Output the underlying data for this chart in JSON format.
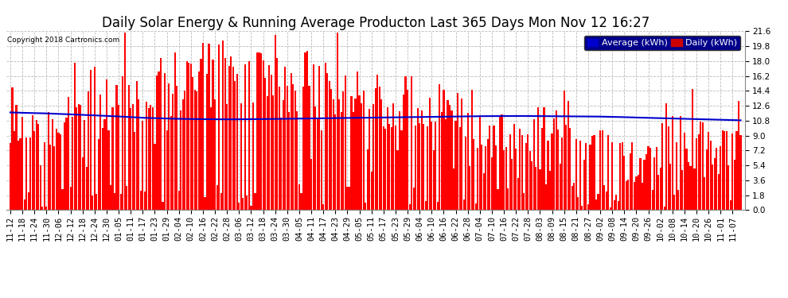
{
  "title": "Daily Solar Energy & Running Average Producton Last 365 Days Mon Nov 12 16:27",
  "copyright": "Copyright 2018 Cartronics.com",
  "bar_color": "#ff0000",
  "avg_line_color": "#0000cd",
  "background_color": "#ffffff",
  "plot_bg_color": "#ffffff",
  "grid_color": "#bbbbbb",
  "ylim": [
    0,
    21.6
  ],
  "ytick_interval": 1.8,
  "legend_avg_label": "Average (kWh)",
  "legend_daily_label": "Daily (kWh)",
  "legend_avg_bg": "#00008b",
  "legend_daily_bg": "#cc0000",
  "title_fontsize": 12,
  "tick_fontsize": 7.5,
  "n_days": 365,
  "seed": 99,
  "date_labels": [
    "11-12",
    "11-18",
    "11-24",
    "11-30",
    "12-06",
    "12-12",
    "12-18",
    "12-24",
    "12-30",
    "01-05",
    "01-11",
    "01-17",
    "01-23",
    "01-29",
    "02-04",
    "02-10",
    "02-16",
    "02-22",
    "02-28",
    "03-06",
    "03-12",
    "03-18",
    "03-24",
    "03-30",
    "04-05",
    "04-11",
    "04-17",
    "04-23",
    "04-29",
    "05-05",
    "05-11",
    "05-17",
    "05-23",
    "05-29",
    "06-04",
    "06-10",
    "06-16",
    "06-22",
    "06-28",
    "07-04",
    "07-10",
    "07-16",
    "07-22",
    "07-28",
    "08-03",
    "08-09",
    "08-15",
    "08-21",
    "08-27",
    "09-02",
    "09-08",
    "09-14",
    "09-20",
    "09-26",
    "10-02",
    "10-08",
    "10-14",
    "10-20",
    "10-26",
    "11-01",
    "11-07"
  ],
  "avg_line_values": [
    11.8,
    11.75,
    11.72,
    11.68,
    11.62,
    11.56,
    11.5,
    11.44,
    11.38,
    11.3,
    11.22,
    11.15,
    11.1,
    11.05,
    11.02,
    11.0,
    10.98,
    10.97,
    10.96,
    10.97,
    10.98,
    11.0,
    11.02,
    11.04,
    11.06,
    11.08,
    11.1,
    11.12,
    11.14,
    11.16,
    11.18,
    11.2,
    11.22,
    11.24,
    11.26,
    11.28,
    11.3,
    11.32,
    11.34,
    11.35,
    11.36,
    11.37,
    11.37,
    11.36,
    11.35,
    11.34,
    11.33,
    11.32,
    11.31,
    11.28,
    11.25,
    11.2,
    11.16,
    11.12,
    11.08,
    11.04,
    11.0,
    10.96,
    10.92,
    10.88,
    10.85
  ]
}
